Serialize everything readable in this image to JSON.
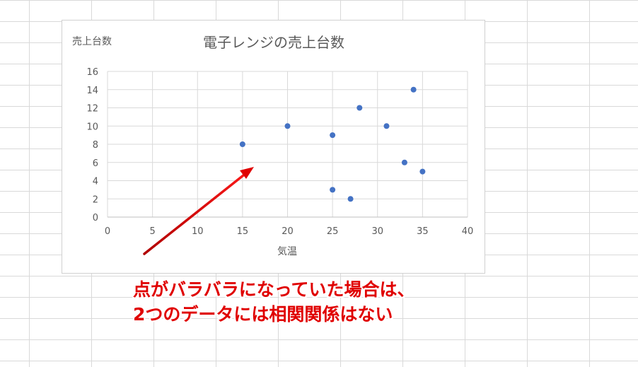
{
  "chart_data": {
    "type": "scatter",
    "title": "電子レンジの売上台数",
    "xlabel": "気温",
    "ylabel": "売上台数",
    "xlim": [
      0,
      40
    ],
    "ylim": [
      0,
      16
    ],
    "xticks": [
      0,
      5,
      10,
      15,
      20,
      25,
      30,
      35,
      40
    ],
    "yticks": [
      0,
      2,
      4,
      6,
      8,
      10,
      12,
      14,
      16
    ],
    "grid": true,
    "marker_color": "#4472c4",
    "points": [
      {
        "x": 15,
        "y": 8
      },
      {
        "x": 20,
        "y": 10
      },
      {
        "x": 25,
        "y": 9
      },
      {
        "x": 28,
        "y": 12
      },
      {
        "x": 31,
        "y": 10
      },
      {
        "x": 34,
        "y": 14
      },
      {
        "x": 33,
        "y": 6
      },
      {
        "x": 35,
        "y": 5
      },
      {
        "x": 25,
        "y": 3
      },
      {
        "x": 27,
        "y": 2
      }
    ]
  },
  "annotation": {
    "line1": "点がバラバラになっていた場合は、",
    "line2": "2つのデータには相関関係はない",
    "color": "#e00000"
  }
}
